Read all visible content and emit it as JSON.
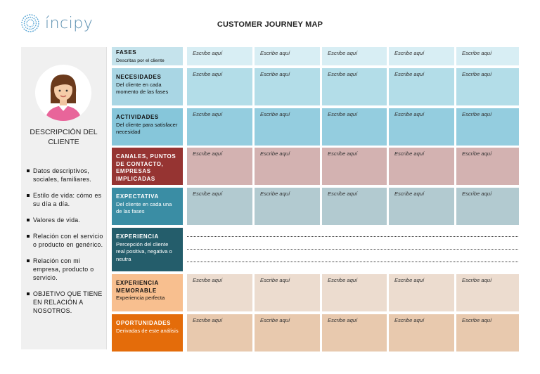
{
  "header": {
    "logo_text": "íncipy",
    "title": "CUSTOMER JOURNEY MAP"
  },
  "sidebar": {
    "title": "DESCRIPCIÓN DEL CLIENTE",
    "bullets": [
      "Datos descriptivos, sociales, familiares.",
      "Estilo de vida: cómo es su día a día.",
      "Valores de vida.",
      "Relación con el servicio o producto en genérico.",
      "Relación con mi empresa, producto o servicio.",
      "OBJETIVO QUE TIENE EN RELACIÓN A NOSOTROS."
    ]
  },
  "placeholder": "Escribe aquí",
  "rows": [
    {
      "id": "fases",
      "title": "FASES",
      "subtitle": "Descritas por el cliente",
      "label_color": "#c5e3ec",
      "cell_color": "#d8eef4",
      "light": false,
      "cells": true
    },
    {
      "id": "necesidades",
      "title": "NECESIDADES",
      "subtitle": "Del cliente en cada momento de las fases",
      "label_color": "#a9d6e4",
      "cell_color": "#b3dde8",
      "light": false,
      "cells": true
    },
    {
      "id": "actividades",
      "title": "ACTIVIDADES",
      "subtitle": "Del cliente para satisfacer necesidad",
      "label_color": "#86c6da",
      "cell_color": "#94cddf",
      "light": false,
      "cells": true
    },
    {
      "id": "canales",
      "title": "CANALES, PUNTOS DE CONTACTO, EMPRESAS IMPLICADAS",
      "subtitle": "",
      "label_color": "#963432",
      "cell_color": "#d3b2b1",
      "light": true,
      "cells": true
    },
    {
      "id": "expectativa",
      "title": "EXPECTATIVA",
      "subtitle": "Del cliente en cada una de las fases",
      "label_color": "#3a8da4",
      "cell_color": "#b2cad0",
      "light": true,
      "cells": true
    },
    {
      "id": "experiencia",
      "title": "EXPERIENCIA",
      "subtitle": "Percepción del cliente real positiva, negativa o neutra",
      "label_color": "#245d6b",
      "cell_color": "#ffffff",
      "light": true,
      "cells": false
    },
    {
      "id": "memorable",
      "title": "EXPERIENCIA MEMORABLE",
      "subtitle": "Experiencia perfecta",
      "label_color": "#f8bf8f",
      "cell_color": "#ecdccf",
      "light": false,
      "cells": true
    },
    {
      "id": "oportunidades",
      "title": "OPORTUNIDADES",
      "subtitle": "Derivadas de este análisis",
      "label_color": "#e46c0a",
      "cell_color": "#e8c9ae",
      "light": true,
      "cells": true
    }
  ]
}
